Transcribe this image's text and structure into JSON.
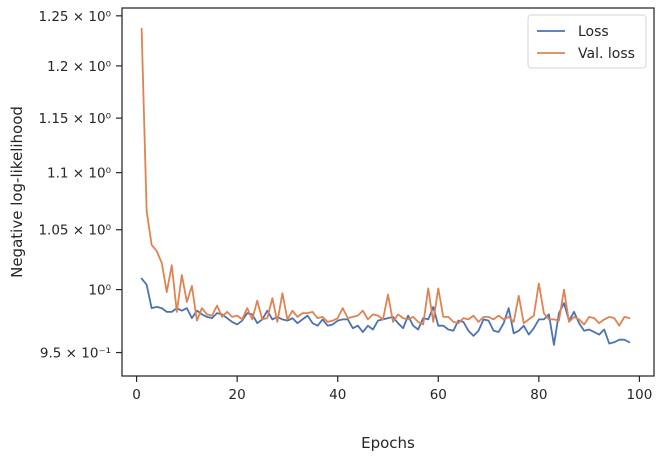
{
  "chart_data": {
    "type": "line",
    "title": "",
    "xlabel": "Epochs",
    "ylabel": "Negative log-likelihood",
    "xlim": [
      -2.9,
      102.9
    ],
    "ylim": [
      0.932,
      1.258
    ],
    "yscale": "log",
    "grid": false,
    "legend_position": "top-right",
    "x_ticks": [
      0,
      20,
      40,
      60,
      80,
      100
    ],
    "x_tick_labels": [
      "0",
      "20",
      "40",
      "60",
      "80",
      "100"
    ],
    "y_ticks": [
      0.95,
      1.0,
      1.05,
      1.1,
      1.15,
      1.2,
      1.25
    ],
    "y_tick_labels": [
      "9.5 × 10⁻¹",
      "10⁰",
      "1.05 × 10⁰",
      "1.1 × 10⁰",
      "1.15 × 10⁰",
      "1.2 × 10⁰",
      "1.25 × 10⁰"
    ],
    "x": [
      1,
      2,
      3,
      4,
      5,
      6,
      7,
      8,
      9,
      10,
      11,
      12,
      13,
      14,
      15,
      16,
      17,
      18,
      19,
      20,
      21,
      22,
      23,
      24,
      25,
      26,
      27,
      28,
      29,
      30,
      31,
      32,
      33,
      34,
      35,
      36,
      37,
      38,
      39,
      40,
      41,
      42,
      43,
      44,
      45,
      46,
      47,
      48,
      49,
      50,
      51,
      52,
      53,
      54,
      55,
      56,
      57,
      58,
      59,
      60,
      61,
      62,
      63,
      64,
      65,
      66,
      67,
      68,
      69,
      70,
      71,
      72,
      73,
      74,
      75,
      76,
      77,
      78,
      79,
      80,
      81,
      82,
      83,
      84,
      85,
      86,
      87,
      88,
      89,
      90,
      91,
      92,
      93,
      94,
      95,
      96,
      97,
      98
    ],
    "series": [
      {
        "name": "Loss",
        "color": "#4c72b0",
        "values": [
          1.009,
          1.004,
          0.985,
          0.986,
          0.985,
          0.982,
          0.982,
          0.985,
          0.983,
          0.985,
          0.977,
          0.983,
          0.98,
          0.978,
          0.977,
          0.981,
          0.98,
          0.977,
          0.974,
          0.972,
          0.975,
          0.981,
          0.98,
          0.973,
          0.976,
          0.983,
          0.976,
          0.978,
          0.976,
          0.975,
          0.977,
          0.973,
          0.976,
          0.979,
          0.973,
          0.971,
          0.976,
          0.971,
          0.972,
          0.975,
          0.976,
          0.976,
          0.969,
          0.971,
          0.966,
          0.971,
          0.968,
          0.975,
          0.976,
          0.977,
          0.978,
          0.973,
          0.969,
          0.979,
          0.971,
          0.968,
          0.977,
          0.976,
          0.986,
          0.971,
          0.971,
          0.968,
          0.967,
          0.975,
          0.974,
          0.967,
          0.963,
          0.967,
          0.976,
          0.975,
          0.967,
          0.966,
          0.973,
          0.985,
          0.965,
          0.967,
          0.971,
          0.964,
          0.969,
          0.976,
          0.976,
          0.98,
          0.956,
          0.981,
          0.989,
          0.975,
          0.982,
          0.973,
          0.967,
          0.968,
          0.966,
          0.964,
          0.968,
          0.957,
          0.958,
          0.96,
          0.96,
          0.958
        ]
      },
      {
        "name": "Val. loss",
        "color": "#dd8452",
        "values": [
          1.237,
          1.066,
          1.037,
          1.032,
          1.022,
          0.998,
          1.02,
          0.982,
          1.012,
          0.99,
          1.003,
          0.975,
          0.985,
          0.98,
          0.979,
          0.987,
          0.978,
          0.982,
          0.978,
          0.979,
          0.976,
          0.985,
          0.976,
          0.991,
          0.976,
          0.977,
          0.993,
          0.974,
          0.997,
          0.976,
          0.983,
          0.978,
          0.981,
          0.981,
          0.982,
          0.977,
          0.978,
          0.974,
          0.975,
          0.977,
          0.985,
          0.977,
          0.978,
          0.979,
          0.983,
          0.976,
          0.98,
          0.979,
          0.976,
          0.996,
          0.974,
          0.98,
          0.977,
          0.976,
          0.978,
          0.974,
          0.972,
          1.001,
          0.974,
          1.001,
          0.978,
          0.978,
          0.974,
          0.973,
          0.977,
          0.976,
          0.979,
          0.974,
          0.978,
          0.978,
          0.976,
          0.979,
          0.976,
          0.978,
          0.974,
          0.995,
          0.973,
          0.976,
          0.979,
          1.005,
          0.981,
          0.976,
          0.976,
          0.975,
          1.0,
          0.974,
          0.978,
          0.976,
          0.972,
          0.978,
          0.977,
          0.973,
          0.976,
          0.978,
          0.977,
          0.971,
          0.978,
          0.977
        ]
      }
    ]
  }
}
